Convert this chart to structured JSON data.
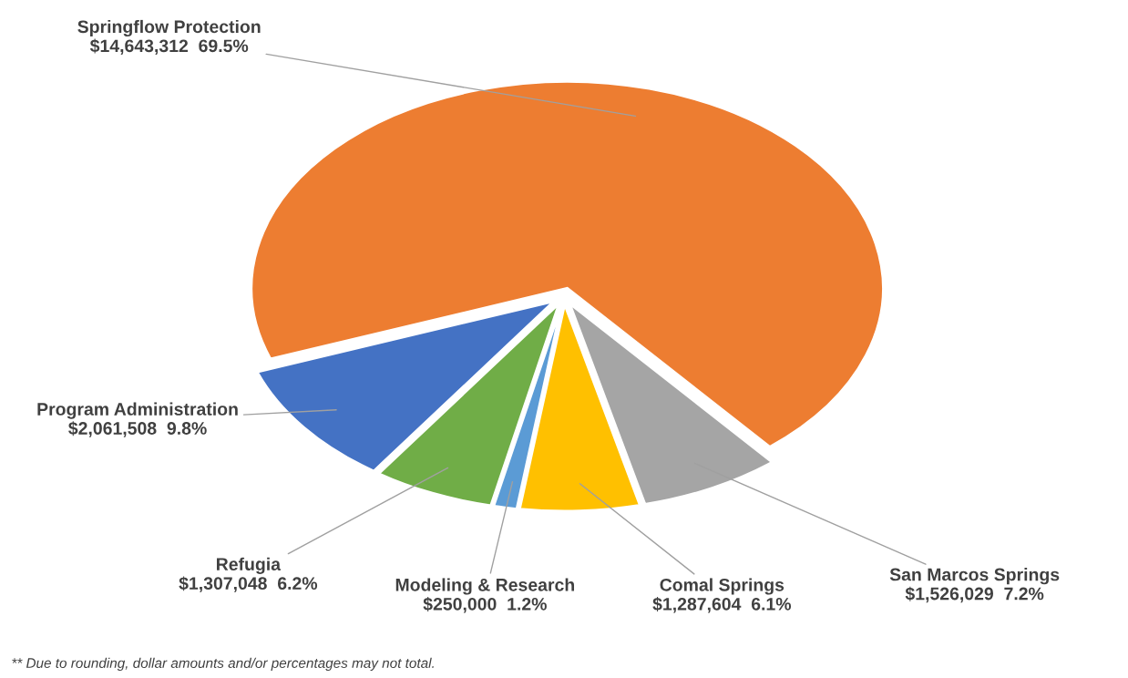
{
  "chart_data": {
    "type": "pie",
    "categories": [
      "Springflow Protection",
      "San Marcos Springs",
      "Comal Springs",
      "Modeling & Research",
      "Refugia",
      "Program Administration"
    ],
    "values": [
      14643312,
      1526029,
      1287604,
      250000,
      1307048,
      2061508
    ],
    "value_labels": [
      "$14,643,312  69.5%",
      "$1,526,029  7.2%",
      "$1,287,604  6.1%",
      "$250,000  1.2%",
      "$1,307,048  6.2%",
      "$2,061,508  9.8%"
    ],
    "colors": [
      "#ed7d31",
      "#a5a5a5",
      "#ffc000",
      "#5b9bd5",
      "#70ad47",
      "#4472c4"
    ],
    "legend": false,
    "annotations": [
      "** Due to rounding, dollar amounts and/or percentages may not total."
    ]
  }
}
